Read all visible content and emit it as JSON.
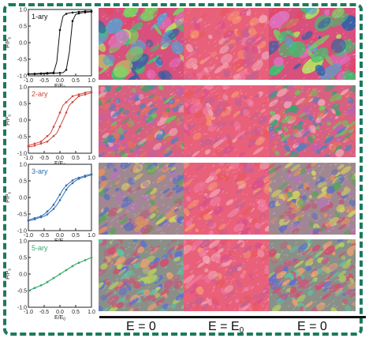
{
  "rows": [
    {
      "label": "1-ary",
      "color": "#111111",
      "hysteresis": 1.0
    },
    {
      "label": "2-ary",
      "color": "#d0463d",
      "hysteresis": 0.55
    },
    {
      "label": "3-ary",
      "color": "#2f6db3",
      "hysteresis": 0.3
    },
    {
      "label": "5-ary",
      "color": "#3aa86a",
      "hysteresis": 0.0
    }
  ],
  "plot_axes": {
    "ylabel": "P/P",
    "ylabel_sub": "s",
    "xlabel": "E/E",
    "xlabel_sub": "0",
    "yticks": [
      "1.0",
      "0.5",
      "0.0",
      "-0.5",
      "-1.0"
    ],
    "xticks": [
      "-1.0",
      "-0.5",
      "0.0",
      "0.5",
      "1.0"
    ]
  },
  "columns": [
    {
      "label": "E = 0"
    },
    {
      "label": "E = E",
      "sub": "0"
    },
    {
      "label": "E = 0"
    }
  ],
  "chart_data": {
    "type": "line",
    "xlabel": "E/E0",
    "ylabel": "P/Ps",
    "xlim": [
      -1.0,
      1.0
    ],
    "ylim": [
      -1.0,
      1.0
    ],
    "series": [
      {
        "name": "1-ary",
        "x": [
          -1.0,
          -0.5,
          0.0,
          0.1,
          0.2,
          0.3,
          0.5,
          1.0
        ],
        "y": [
          -0.95,
          -0.93,
          -0.9,
          -0.5,
          0.6,
          0.85,
          0.9,
          0.95
        ]
      },
      {
        "name": "2-ary",
        "x": [
          -1.0,
          -0.5,
          -0.2,
          0.0,
          0.2,
          0.5,
          1.0
        ],
        "y": [
          -0.8,
          -0.65,
          -0.4,
          0.0,
          0.45,
          0.72,
          0.85
        ]
      },
      {
        "name": "3-ary",
        "x": [
          -1.0,
          -0.5,
          -0.2,
          0.0,
          0.2,
          0.5,
          1.0
        ],
        "y": [
          -0.7,
          -0.55,
          -0.3,
          0.0,
          0.32,
          0.55,
          0.7
        ]
      },
      {
        "name": "5-ary",
        "x": [
          -1.0,
          -0.5,
          0.0,
          0.5,
          1.0
        ],
        "y": [
          -0.5,
          -0.3,
          0.0,
          0.3,
          0.5
        ]
      }
    ]
  }
}
